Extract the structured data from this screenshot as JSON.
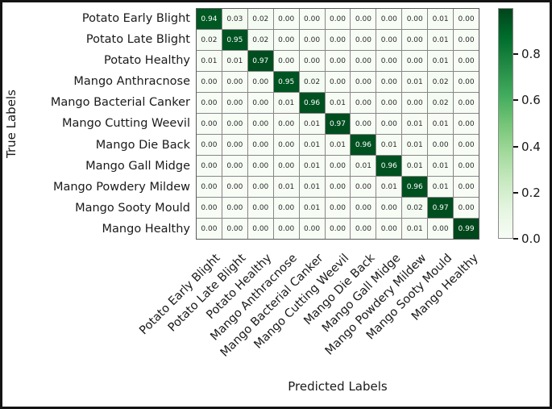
{
  "chart_data": {
    "type": "heatmap",
    "title": "",
    "xlabel": "Predicted Labels",
    "ylabel": "True Labels",
    "labels": [
      "Potato Early Blight",
      "Potato Late Blight",
      "Potato Healthy",
      "Mango Anthracnose",
      "Mango Bacterial Canker",
      "Mango Cutting Weevil",
      "Mango Die Back",
      "Mango Gall Midge",
      "Mango Powdery Mildew",
      "Mango Sooty Mould",
      "Mango Healthy"
    ],
    "matrix": [
      [
        0.94,
        0.03,
        0.02,
        0.0,
        0.0,
        0.0,
        0.0,
        0.0,
        0.0,
        0.01,
        0.0
      ],
      [
        0.02,
        0.95,
        0.02,
        0.0,
        0.0,
        0.0,
        0.0,
        0.0,
        0.0,
        0.01,
        0.0
      ],
      [
        0.01,
        0.01,
        0.97,
        0.0,
        0.0,
        0.0,
        0.0,
        0.0,
        0.0,
        0.01,
        0.0
      ],
      [
        0.0,
        0.0,
        0.0,
        0.95,
        0.02,
        0.0,
        0.0,
        0.0,
        0.01,
        0.02,
        0.0
      ],
      [
        0.0,
        0.0,
        0.0,
        0.01,
        0.96,
        0.01,
        0.0,
        0.0,
        0.0,
        0.02,
        0.0
      ],
      [
        0.0,
        0.0,
        0.0,
        0.0,
        0.01,
        0.97,
        0.0,
        0.0,
        0.01,
        0.01,
        0.0
      ],
      [
        0.0,
        0.0,
        0.0,
        0.0,
        0.01,
        0.01,
        0.96,
        0.01,
        0.01,
        0.0,
        0.0
      ],
      [
        0.0,
        0.0,
        0.0,
        0.0,
        0.01,
        0.0,
        0.01,
        0.96,
        0.01,
        0.01,
        0.0
      ],
      [
        0.0,
        0.0,
        0.0,
        0.01,
        0.01,
        0.0,
        0.0,
        0.01,
        0.96,
        0.01,
        0.0
      ],
      [
        0.0,
        0.0,
        0.0,
        0.0,
        0.01,
        0.0,
        0.0,
        0.0,
        0.02,
        0.97,
        0.0
      ],
      [
        0.0,
        0.0,
        0.0,
        0.0,
        0.0,
        0.0,
        0.0,
        0.0,
        0.01,
        0.0,
        0.99
      ]
    ],
    "vmin": 0.0,
    "vmax": 1.0,
    "colormap": "Greens",
    "colorbar_position": "right",
    "colorbar_ticks": [
      0.0,
      0.2,
      0.4,
      0.6,
      0.8
    ],
    "value_format": "0.00",
    "grid": true
  },
  "colors": {
    "background": "#ffffff",
    "frame": "#141414",
    "grid_lines": "#878787",
    "annot_light": "#ffffff",
    "annot_dark": "#2b2b2b",
    "label_text": "#1a1a1a",
    "greens_stops": [
      [
        0.0,
        "#f7fcf5"
      ],
      [
        0.125,
        "#e5f5e0"
      ],
      [
        0.25,
        "#c7e9c0"
      ],
      [
        0.375,
        "#a1d99b"
      ],
      [
        0.5,
        "#74c476"
      ],
      [
        0.625,
        "#41ab5d"
      ],
      [
        0.75,
        "#238b45"
      ],
      [
        0.875,
        "#006d2c"
      ],
      [
        1.0,
        "#00441b"
      ]
    ]
  }
}
